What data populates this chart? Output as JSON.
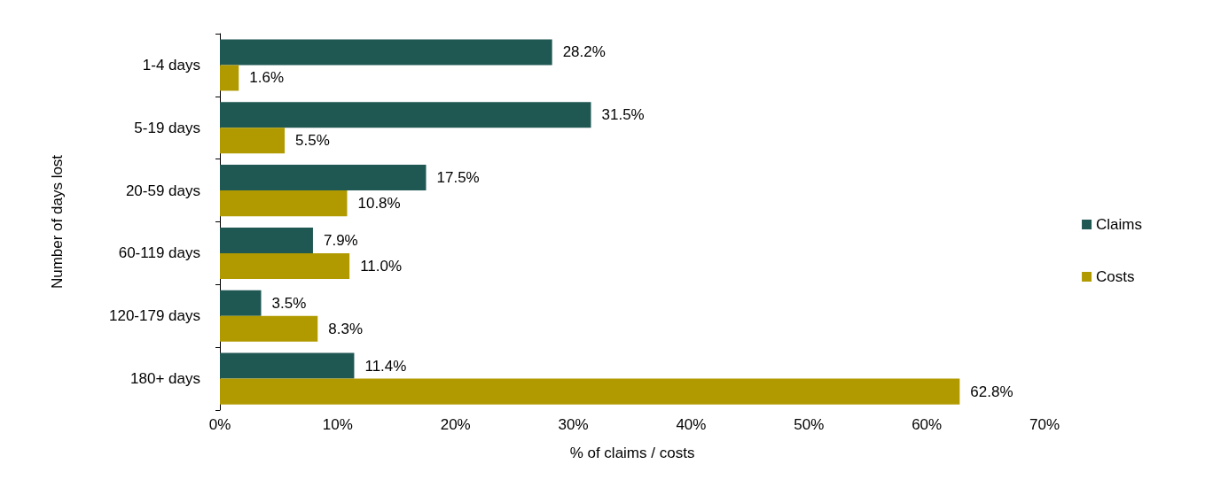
{
  "chart_data": {
    "type": "bar",
    "orientation": "horizontal",
    "xlabel": "% of claims / costs",
    "ylabel": "Number of days lost",
    "categories": [
      "1-4 days",
      "5-19 days",
      "20-59 days",
      "60-119 days",
      "120-179 days",
      "180+ days"
    ],
    "series": [
      {
        "name": "Claims",
        "color": "#1f5753",
        "values": [
          28.2,
          31.5,
          17.5,
          7.9,
          3.5,
          11.4
        ],
        "value_labels": [
          "28.2%",
          "31.5%",
          "17.5%",
          "7.9%",
          "3.5%",
          "11.4%"
        ]
      },
      {
        "name": "Costs",
        "color": "#b09a00",
        "values": [
          1.6,
          5.5,
          10.8,
          11.0,
          8.3,
          62.8
        ],
        "value_labels": [
          "1.6%",
          "5.5%",
          "10.8%",
          "11.0%",
          "8.3%",
          "62.8%"
        ]
      }
    ],
    "xlim": [
      0,
      70
    ],
    "xticks": [
      {
        "value": 0,
        "label": "0%"
      },
      {
        "value": 10,
        "label": "10%"
      },
      {
        "value": 20,
        "label": "20%"
      },
      {
        "value": 30,
        "label": "30%"
      },
      {
        "value": 40,
        "label": "40%"
      },
      {
        "value": 50,
        "label": "50%"
      },
      {
        "value": 60,
        "label": "60%"
      },
      {
        "value": 70,
        "label": "70%"
      }
    ],
    "grid": false,
    "legend": "right"
  }
}
